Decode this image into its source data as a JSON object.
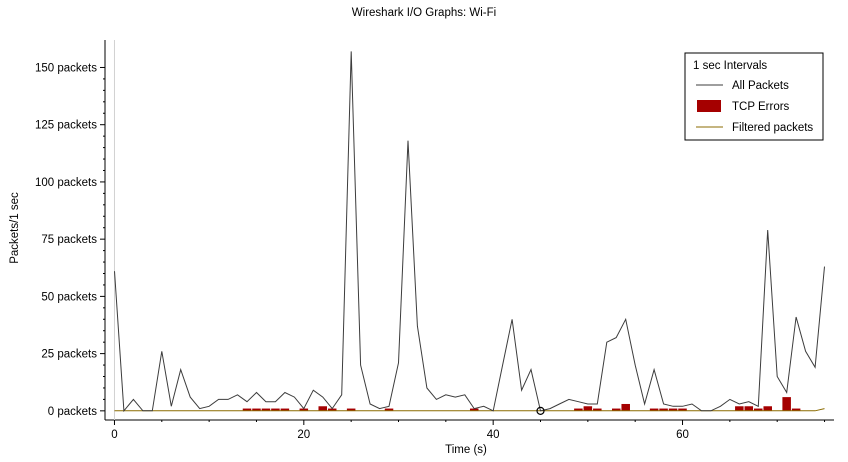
{
  "window": {
    "title": "Wireshark I/O Graphs: Wi-Fi"
  },
  "chart_data": {
    "type": "line",
    "title": "Wireshark I/O Graphs: Wi-Fi",
    "xlabel": "Time (s)",
    "ylabel": "Packets/1 sec",
    "xlim": [
      -1,
      76
    ],
    "ylim": [
      -4,
      162
    ],
    "x_ticks": [
      0,
      20,
      40,
      60
    ],
    "y_ticks": [
      0,
      25,
      50,
      75,
      100,
      125,
      150
    ],
    "y_tick_labels": [
      "0 packets",
      "25 packets",
      "50 packets",
      "75 packets",
      "100 packets",
      "125 packets",
      "150 packets"
    ],
    "grid": "off",
    "legend": {
      "placement": "top-right",
      "title": "1 sec Intervals"
    },
    "x": [
      0,
      1,
      2,
      3,
      4,
      5,
      6,
      7,
      8,
      9,
      10,
      11,
      12,
      13,
      14,
      15,
      16,
      17,
      18,
      19,
      20,
      21,
      22,
      23,
      24,
      25,
      26,
      27,
      28,
      29,
      30,
      31,
      32,
      33,
      34,
      35,
      36,
      37,
      38,
      39,
      40,
      41,
      42,
      43,
      44,
      45,
      46,
      47,
      48,
      49,
      50,
      51,
      52,
      53,
      54,
      55,
      56,
      57,
      58,
      59,
      60,
      61,
      62,
      63,
      64,
      65,
      66,
      67,
      68,
      69,
      70,
      71,
      72,
      73,
      74,
      75
    ],
    "series": [
      {
        "name": "All Packets",
        "style": "line",
        "color": "#3c3c3c",
        "values": [
          61,
          0,
          5,
          0,
          0,
          26,
          2,
          18,
          6,
          1,
          2,
          5,
          5,
          7,
          4,
          8,
          4,
          4,
          8,
          6,
          1,
          9,
          6,
          1,
          7,
          157,
          20,
          3,
          1,
          2,
          21,
          118,
          37,
          10,
          5,
          7,
          6,
          7,
          1,
          2,
          0,
          20,
          40,
          9,
          18,
          0,
          1,
          3,
          5,
          4,
          3,
          3,
          30,
          32,
          40,
          20,
          3,
          18,
          3,
          2,
          2,
          3,
          0,
          0,
          2,
          5,
          3,
          4,
          2,
          79,
          15,
          8,
          41,
          26,
          19,
          63
        ]
      },
      {
        "name": "TCP Errors",
        "style": "bar",
        "color": "#a50000",
        "values": [
          0,
          0,
          0,
          0,
          0,
          0,
          0,
          0,
          0,
          0,
          0,
          0,
          0,
          0,
          1,
          1,
          1,
          1,
          1,
          0,
          1,
          0,
          2,
          1,
          0,
          1,
          0,
          0,
          0,
          1,
          0,
          0,
          0,
          0,
          0,
          0,
          0,
          0,
          1,
          0,
          0,
          0,
          0,
          0,
          0,
          0,
          0,
          0,
          0,
          1,
          2,
          1,
          0,
          1,
          3,
          0,
          0,
          1,
          1,
          1,
          1,
          0,
          0,
          0,
          0,
          0,
          2,
          2,
          1,
          2,
          0,
          6,
          1,
          0,
          0,
          0
        ]
      },
      {
        "name": "Filtered packets",
        "style": "line",
        "color": "#8b6b00",
        "values": [
          0,
          0,
          0,
          0,
          0,
          0,
          0,
          0,
          0,
          0,
          0,
          0,
          0,
          0,
          0,
          0,
          0,
          0,
          0,
          0,
          0,
          0,
          0,
          0,
          0,
          0,
          0,
          0,
          0,
          0,
          0,
          0,
          0,
          0,
          0,
          0,
          0,
          0,
          0,
          0,
          0,
          0,
          0,
          0,
          0,
          0,
          0,
          0,
          0,
          0,
          0,
          0,
          0,
          0,
          0,
          0,
          0,
          0,
          0,
          0,
          0,
          0,
          0,
          0,
          0,
          0,
          0,
          0,
          0,
          0,
          0,
          0,
          0,
          0,
          0,
          1
        ]
      }
    ],
    "marker": {
      "x": 45,
      "y": 0
    }
  }
}
